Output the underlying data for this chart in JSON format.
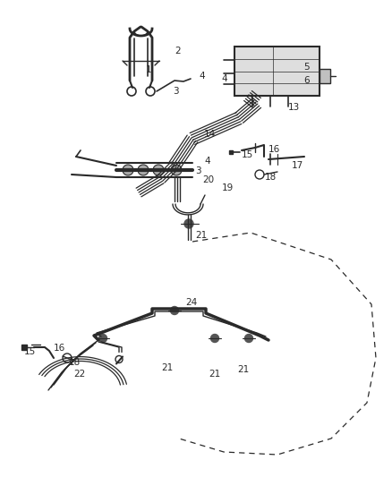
{
  "bg_color": "#ffffff",
  "line_color": "#2a2a2a",
  "label_color": "#2a2a2a",
  "figsize": [
    4.38,
    5.33
  ],
  "dpi": 100,
  "label_fs": 7.5,
  "labels": [
    [
      "2",
      195,
      52
    ],
    [
      "1",
      163,
      73
    ],
    [
      "3",
      193,
      97
    ],
    [
      "4",
      222,
      80
    ],
    [
      "4",
      247,
      83
    ],
    [
      "5",
      339,
      70
    ],
    [
      "6",
      339,
      85
    ],
    [
      "13",
      322,
      115
    ],
    [
      "14",
      228,
      145
    ],
    [
      "15",
      270,
      168
    ],
    [
      "16",
      300,
      162
    ],
    [
      "17",
      326,
      180
    ],
    [
      "18",
      296,
      193
    ],
    [
      "19",
      248,
      205
    ],
    [
      "20",
      226,
      196
    ],
    [
      "3",
      218,
      186
    ],
    [
      "4",
      228,
      175
    ],
    [
      "21",
      218,
      258
    ],
    [
      "24",
      207,
      333
    ],
    [
      "21",
      180,
      406
    ],
    [
      "21",
      233,
      413
    ],
    [
      "21",
      265,
      408
    ],
    [
      "15",
      27,
      388
    ],
    [
      "16",
      60,
      384
    ],
    [
      "18",
      77,
      400
    ],
    [
      "22",
      82,
      413
    ]
  ]
}
